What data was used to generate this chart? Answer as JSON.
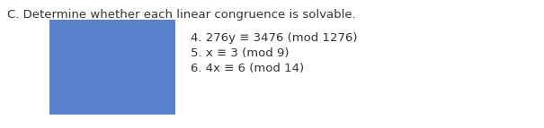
{
  "background_color": "#ffffff",
  "title": "C. Determine whether each linear congruence is solvable.",
  "title_fontsize": 9.5,
  "title_color": "#333333",
  "rect_color": "#5b80cc",
  "lines": [
    "4. 276y ≡ 3476 (mod 1276)",
    "5. x ≡ 3 (mod 9)",
    "6. 4x ≡ 6 (mod 14)"
  ],
  "lines_fontsize": 9.5,
  "lines_color": "#333333"
}
